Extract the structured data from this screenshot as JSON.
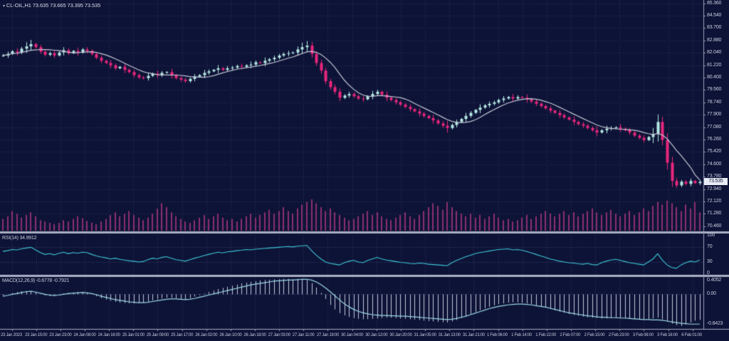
{
  "header": {
    "marker_glyph": "▾",
    "title": "CL-OIL,H1 73.635 73.665 73.395 73.535"
  },
  "chart_data": {
    "type": "candlestick",
    "symbol": "CL-OIL",
    "timeframe": "H1",
    "ohlc_readout": {
      "open": "73.635",
      "high": "73.665",
      "low": "73.395",
      "close": "73.535"
    },
    "colors": {
      "bg": "#0d1336",
      "grid": "#2a3160",
      "guide": "#3c4477",
      "bull": "#b6e8e4",
      "bull_edge": "#d4f4f0",
      "bear": "#e8267c",
      "ma": "#c3c6d4",
      "volume": "#8c3070",
      "rsi_line": "#3fc6d8",
      "macd_hist": "#c3c7dc",
      "macd_line": "#9bd8e6",
      "separator": "#aab0c4",
      "axis_border": "#9aa0b6",
      "text": "#c8ccde"
    },
    "price_axis": {
      "labels": [
        "85.360",
        "84.540",
        "83.700",
        "82.880",
        "82.040",
        "81.220",
        "80.400",
        "79.560",
        "78.740",
        "77.900",
        "77.080",
        "76.260",
        "75.420",
        "74.600",
        "73.780",
        "72.940",
        "72.120",
        "71.280",
        "70.460"
      ],
      "current": "73.535"
    },
    "time_axis": [
      "23 Jan 2023",
      "23 Jan 15:00",
      "23 Jan 23:00",
      "24 Jan 08:00",
      "24 Jan 16:00",
      "25 Jan 01:00",
      "25 Jan 09:00",
      "25 Jan 17:00",
      "26 Jan 02:00",
      "26 Jan 10:00",
      "26 Jan 18:00",
      "27 Jan 03:00",
      "27 Jan 11:00",
      "27 Jan 19:00",
      "30 Jan 04:00",
      "30 Jan 12:00",
      "30 Jan 20:00",
      "31 Jan 05:00",
      "31 Jan 13:00",
      "31 Jan 21:00",
      "1 Feb 06:00",
      "1 Feb 14:00",
      "1 Feb 22:00",
      "2 Feb 07:00",
      "2 Feb 15:00",
      "2 Feb 23:00",
      "3 Feb 08:00",
      "3 Feb 16:00",
      "6 Feb 01:00"
    ],
    "closes": [
      81.9,
      82.0,
      82.18,
      82.1,
      82.35,
      82.5,
      82.65,
      82.45,
      82.15,
      81.95,
      82.05,
      81.9,
      82.1,
      82.25,
      82.05,
      82.2,
      82.1,
      82.3,
      82.2,
      82.0,
      81.75,
      81.55,
      81.4,
      81.25,
      81.05,
      81.15,
      80.95,
      80.8,
      80.6,
      80.45,
      80.4,
      80.55,
      80.7,
      80.6,
      80.75,
      80.8,
      80.6,
      80.4,
      80.3,
      80.2,
      80.35,
      80.5,
      80.6,
      80.75,
      80.85,
      80.95,
      81.05,
      80.95,
      81.05,
      81.1,
      81.2,
      81.15,
      81.25,
      81.3,
      81.45,
      81.4,
      81.55,
      81.65,
      81.75,
      81.9,
      82.0,
      82.05,
      82.1,
      82.3,
      82.45,
      82.55,
      82.0,
      81.4,
      80.9,
      80.2,
      79.8,
      79.5,
      79.1,
      79.25,
      79.35,
      79.2,
      79.05,
      79.0,
      79.2,
      79.35,
      79.5,
      79.3,
      79.1,
      78.95,
      78.8,
      78.65,
      78.5,
      78.35,
      78.2,
      78.05,
      77.9,
      77.75,
      77.6,
      77.4,
      77.25,
      77.1,
      77.3,
      77.5,
      77.7,
      77.9,
      78.1,
      78.3,
      78.45,
      78.6,
      78.7,
      78.8,
      78.95,
      79.05,
      79.15,
      79.05,
      79.15,
      79.1,
      79.0,
      78.85,
      78.7,
      78.55,
      78.4,
      78.25,
      78.1,
      77.95,
      77.8,
      77.65,
      77.5,
      77.35,
      77.25,
      77.1,
      76.95,
      76.8,
      76.95,
      77.05,
      77.1,
      77.15,
      77.05,
      76.95,
      76.8,
      76.6,
      76.45,
      76.3,
      76.5,
      76.7,
      77.5,
      76.3,
      74.8,
      73.6,
      73.3,
      73.55,
      73.4,
      73.6,
      73.45,
      73.54
    ],
    "wicks": [
      0.1,
      0.16,
      0.07,
      0.2,
      0.12,
      0.28,
      0.28,
      0.09,
      0.15,
      0.11,
      0.1,
      0.16,
      0.07,
      0.2,
      0.12,
      0.06,
      0.22,
      0.09,
      0.15,
      0.11,
      0.1,
      0.16,
      0.07,
      0.2,
      0.12,
      0.06,
      0.22,
      0.09,
      0.15,
      0.11,
      0.1,
      0.16,
      0.07,
      0.2,
      0.12,
      0.06,
      0.22,
      0.09,
      0.15,
      0.11,
      0.1,
      0.16,
      0.07,
      0.2,
      0.12,
      0.06,
      0.22,
      0.09,
      0.15,
      0.11,
      0.1,
      0.16,
      0.07,
      0.2,
      0.12,
      0.06,
      0.22,
      0.09,
      0.15,
      0.11,
      0.1,
      0.16,
      0.07,
      0.2,
      0.3,
      0.3,
      0.25,
      0.18,
      0.22,
      0.2,
      0.15,
      0.18,
      0.22,
      0.09,
      0.15,
      0.11,
      0.1,
      0.16,
      0.07,
      0.2,
      0.12,
      0.06,
      0.22,
      0.09,
      0.15,
      0.11,
      0.1,
      0.16,
      0.07,
      0.2,
      0.12,
      0.06,
      0.22,
      0.09,
      0.15,
      0.32,
      0.1,
      0.16,
      0.07,
      0.2,
      0.12,
      0.06,
      0.22,
      0.09,
      0.15,
      0.11,
      0.1,
      0.16,
      0.07,
      0.2,
      0.12,
      0.06,
      0.22,
      0.09,
      0.15,
      0.11,
      0.1,
      0.16,
      0.07,
      0.2,
      0.12,
      0.06,
      0.22,
      0.09,
      0.15,
      0.11,
      0.1,
      0.26,
      0.07,
      0.2,
      0.12,
      0.06,
      0.22,
      0.09,
      0.15,
      0.11,
      0.1,
      0.16,
      0.07,
      0.4,
      0.5,
      0.35,
      0.45,
      0.4,
      0.18,
      0.11,
      0.1,
      0.16,
      0.07,
      0.12
    ],
    "volume": [
      18,
      22,
      30,
      26,
      20,
      24,
      28,
      22,
      16,
      14,
      12,
      10,
      12,
      16,
      14,
      18,
      22,
      19,
      15,
      12,
      10,
      14,
      18,
      24,
      28,
      22,
      26,
      30,
      24,
      20,
      16,
      20,
      26,
      34,
      42,
      36,
      28,
      22,
      18,
      14,
      12,
      16,
      20,
      24,
      18,
      22,
      26,
      20,
      16,
      18,
      14,
      18,
      22,
      26,
      20,
      24,
      28,
      32,
      26,
      30,
      36,
      30,
      26,
      34,
      40,
      44,
      48,
      42,
      36,
      30,
      34,
      28,
      24,
      20,
      16,
      18,
      22,
      26,
      30,
      24,
      28,
      22,
      18,
      16,
      20,
      24,
      28,
      22,
      18,
      24,
      30,
      36,
      42,
      38,
      32,
      44,
      36,
      30,
      26,
      22,
      26,
      20,
      24,
      18,
      22,
      26,
      20,
      16,
      18,
      14,
      16,
      20,
      24,
      18,
      22,
      26,
      30,
      26,
      22,
      26,
      30,
      24,
      28,
      22,
      26,
      30,
      34,
      28,
      24,
      28,
      32,
      26,
      22,
      26,
      30,
      24,
      28,
      34,
      30,
      38,
      44,
      40,
      46,
      42,
      36,
      30,
      40,
      34,
      44,
      28
    ],
    "rsi": {
      "label": "RSI(14) 34.9912",
      "axis": [
        "100",
        "70",
        "30",
        "0"
      ],
      "guides": [
        70,
        30
      ],
      "values": [
        58,
        60,
        63,
        62,
        65,
        67,
        69,
        62,
        55,
        50,
        52,
        49,
        53,
        56,
        52,
        55,
        53,
        56,
        55,
        50,
        46,
        43,
        41,
        38,
        40,
        37,
        35,
        33,
        32,
        30,
        31,
        36,
        40,
        38,
        42,
        44,
        40,
        36,
        34,
        32,
        36,
        40,
        43,
        47,
        50,
        53,
        56,
        54,
        57,
        58,
        60,
        61,
        63,
        62,
        64,
        65,
        66,
        67,
        68,
        69,
        70,
        71,
        70,
        72,
        73,
        74,
        60,
        48,
        38,
        30,
        26,
        24,
        22,
        28,
        32,
        34,
        30,
        28,
        34,
        38,
        42,
        38,
        35,
        33,
        31,
        29,
        28,
        26,
        25,
        27,
        26,
        24,
        23,
        22,
        21,
        20,
        28,
        34,
        39,
        44,
        48,
        52,
        55,
        57,
        59,
        61,
        63,
        64,
        65,
        62,
        63,
        61,
        58,
        54,
        50,
        46,
        42,
        38,
        35,
        32,
        30,
        28,
        27,
        25,
        24,
        26,
        23,
        22,
        28,
        32,
        35,
        37,
        34,
        31,
        28,
        26,
        24,
        22,
        30,
        38,
        52,
        35,
        22,
        15,
        13,
        22,
        28,
        32,
        30,
        35
      ]
    },
    "macd": {
      "label": "MACD(12,26,9) -0.6778 -0.7921",
      "axis_max": "0.4052",
      "axis_zero": "0.00",
      "axis_min": "-0.8423",
      "hist": [
        -0.03,
        0.0,
        0.03,
        0.06,
        0.08,
        0.09,
        0.08,
        0.05,
        0.0,
        -0.03,
        -0.05,
        -0.04,
        -0.01,
        0.02,
        0.04,
        0.05,
        0.06,
        0.06,
        0.04,
        0.0,
        -0.05,
        -0.1,
        -0.14,
        -0.17,
        -0.2,
        -0.22,
        -0.23,
        -0.24,
        -0.24,
        -0.23,
        -0.22,
        -0.19,
        -0.16,
        -0.13,
        -0.11,
        -0.09,
        -0.09,
        -0.1,
        -0.12,
        -0.13,
        -0.1,
        -0.06,
        -0.02,
        0.02,
        0.06,
        0.1,
        0.14,
        0.17,
        0.2,
        0.23,
        0.26,
        0.29,
        0.31,
        0.33,
        0.35,
        0.37,
        0.38,
        0.39,
        0.4,
        0.4,
        0.41,
        0.41,
        0.4,
        0.41,
        0.41,
        0.4,
        0.3,
        0.18,
        0.04,
        -0.12,
        -0.28,
        -0.4,
        -0.5,
        -0.56,
        -0.6,
        -0.63,
        -0.65,
        -0.66,
        -0.66,
        -0.65,
        -0.64,
        -0.63,
        -0.62,
        -0.62,
        -0.63,
        -0.64,
        -0.65,
        -0.66,
        -0.67,
        -0.68,
        -0.7,
        -0.71,
        -0.72,
        -0.73,
        -0.74,
        -0.75,
        -0.72,
        -0.68,
        -0.63,
        -0.58,
        -0.52,
        -0.47,
        -0.42,
        -0.37,
        -0.33,
        -0.29,
        -0.26,
        -0.24,
        -0.22,
        -0.21,
        -0.21,
        -0.22,
        -0.24,
        -0.26,
        -0.29,
        -0.32,
        -0.35,
        -0.39,
        -0.42,
        -0.46,
        -0.49,
        -0.52,
        -0.55,
        -0.57,
        -0.59,
        -0.61,
        -0.62,
        -0.63,
        -0.64,
        -0.64,
        -0.63,
        -0.62,
        -0.63,
        -0.64,
        -0.65,
        -0.66,
        -0.67,
        -0.67,
        -0.66,
        -0.64,
        -0.62,
        -0.66,
        -0.72,
        -0.78,
        -0.82,
        -0.84,
        -0.8,
        -0.75,
        -0.7,
        -0.68
      ],
      "signal": [
        -0.05,
        -0.03,
        0.0,
        0.02,
        0.05,
        0.07,
        0.08,
        0.06,
        0.03,
        0.0,
        -0.02,
        -0.03,
        -0.02,
        0.0,
        0.02,
        0.03,
        0.04,
        0.05,
        0.04,
        0.02,
        -0.01,
        -0.05,
        -0.08,
        -0.11,
        -0.14,
        -0.16,
        -0.18,
        -0.2,
        -0.21,
        -0.22,
        -0.22,
        -0.21,
        -0.19,
        -0.17,
        -0.15,
        -0.13,
        -0.12,
        -0.12,
        -0.13,
        -0.14,
        -0.13,
        -0.11,
        -0.08,
        -0.05,
        -0.02,
        0.01,
        0.04,
        0.07,
        0.1,
        0.13,
        0.16,
        0.19,
        0.22,
        0.25,
        0.27,
        0.29,
        0.31,
        0.33,
        0.35,
        0.36,
        0.37,
        0.38,
        0.38,
        0.39,
        0.4,
        0.4,
        0.38,
        0.33,
        0.26,
        0.17,
        0.07,
        -0.04,
        -0.15,
        -0.25,
        -0.33,
        -0.4,
        -0.45,
        -0.49,
        -0.52,
        -0.54,
        -0.55,
        -0.56,
        -0.56,
        -0.57,
        -0.57,
        -0.58,
        -0.58,
        -0.59,
        -0.6,
        -0.61,
        -0.62,
        -0.63,
        -0.64,
        -0.65,
        -0.66,
        -0.67,
        -0.66,
        -0.64,
        -0.61,
        -0.58,
        -0.54,
        -0.5,
        -0.46,
        -0.42,
        -0.38,
        -0.35,
        -0.32,
        -0.3,
        -0.28,
        -0.27,
        -0.26,
        -0.26,
        -0.27,
        -0.28,
        -0.3,
        -0.32,
        -0.34,
        -0.37,
        -0.4,
        -0.43,
        -0.46,
        -0.49,
        -0.51,
        -0.53,
        -0.55,
        -0.57,
        -0.58,
        -0.6,
        -0.61,
        -0.61,
        -0.62,
        -0.62,
        -0.63,
        -0.63,
        -0.64,
        -0.65,
        -0.66,
        -0.67,
        -0.67,
        -0.68,
        -0.68,
        -0.69,
        -0.71,
        -0.73,
        -0.75,
        -0.77,
        -0.78,
        -0.79,
        -0.79,
        -0.79
      ]
    }
  }
}
